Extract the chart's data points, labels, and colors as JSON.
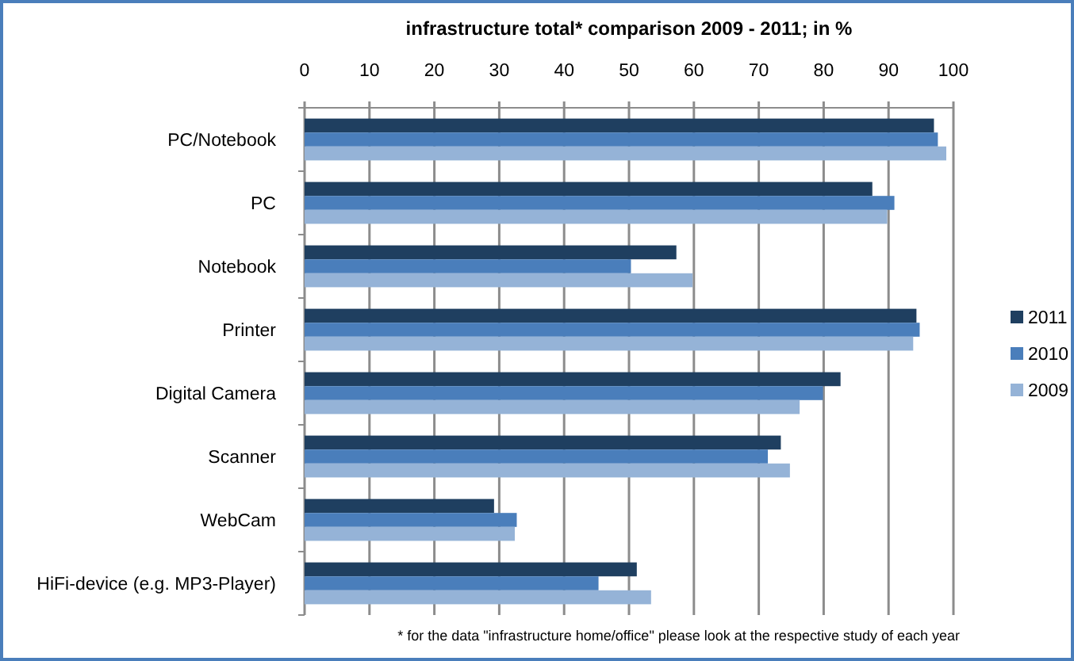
{
  "chart_data": {
    "type": "bar",
    "orientation": "horizontal",
    "title": "infrastructure total* comparison 2009  - 2011;  in %",
    "categories": [
      "PC/Notebook",
      "PC",
      "Notebook",
      "Printer",
      "Digital Camera",
      "Scanner",
      "WebCam",
      "HiFi-device (e.g. MP3-Player)"
    ],
    "series": [
      {
        "name": "2011",
        "color": "#1f3f60",
        "values": [
          97,
          87.5,
          57.3,
          94.3,
          82.6,
          73.4,
          29.2,
          51.2
        ]
      },
      {
        "name": "2010",
        "color": "#4a7ebb",
        "values": [
          97.6,
          90.9,
          50.3,
          94.8,
          79.9,
          71.4,
          32.7,
          45.3
        ]
      },
      {
        "name": "2009",
        "color": "#95b3d7",
        "values": [
          98.9,
          89.8,
          59.8,
          93.8,
          76.3,
          74.8,
          32.4,
          53.4
        ]
      }
    ],
    "xlim": [
      0,
      100
    ],
    "xticks": [
      0,
      10,
      20,
      30,
      40,
      50,
      60,
      70,
      80,
      90,
      100
    ],
    "grid": "x",
    "legend": "right",
    "annotations": [
      "* for the data  \"infrastructure home/office\" please look at the respective study of each year"
    ]
  }
}
